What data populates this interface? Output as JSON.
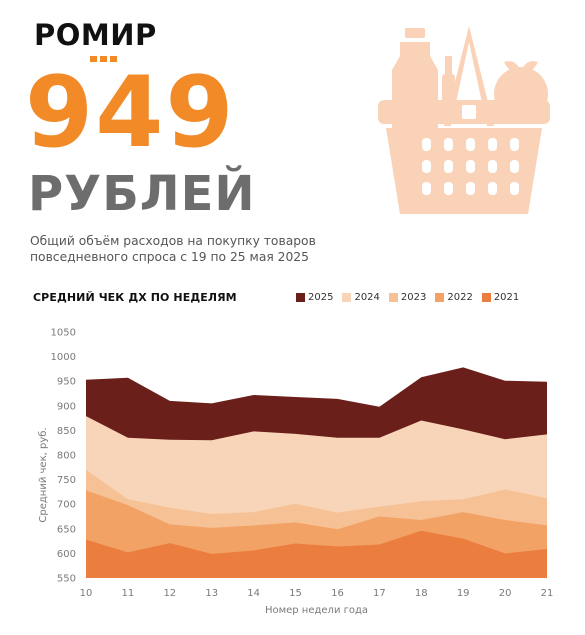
{
  "brand": {
    "logo_text": "РОМИР"
  },
  "headline": {
    "value": "949",
    "unit": "РУБЛЕЙ"
  },
  "subtitle_line1": "Общий объём расходов на покупку товаров",
  "subtitle_line2": "повседневного спроса с 19 по 25 мая 2025",
  "colors": {
    "accent": "#f28a28",
    "unit_gray": "#6d6d6d",
    "basket": "#f9d2b8"
  },
  "icons": {
    "basket": "grocery-basket-icon"
  },
  "chart_data": {
    "type": "area",
    "title": "СРЕДНИЙ ЧЕК ДХ ПО НЕДЕЛЯМ",
    "xlabel": "Номер недели года",
    "ylabel": "Средний чек, руб.",
    "x": [
      10,
      11,
      12,
      13,
      14,
      15,
      16,
      17,
      18,
      19,
      20,
      21
    ],
    "ylim": [
      550,
      1050
    ],
    "yticks": [
      550,
      600,
      650,
      700,
      750,
      800,
      850,
      900,
      950,
      1000,
      1050
    ],
    "grid": false,
    "legend_position": "top-right",
    "series": [
      {
        "name": "2025",
        "color": "#6b1f1a",
        "values": [
          953,
          957,
          910,
          905,
          922,
          918,
          914,
          898,
          958,
          978,
          951,
          949
        ]
      },
      {
        "name": "2024",
        "color": "#f8d5b8",
        "values": [
          879,
          835,
          831,
          830,
          848,
          843,
          835,
          835,
          870,
          852,
          832,
          842
        ]
      },
      {
        "name": "2023",
        "color": "#f6c295",
        "values": [
          770,
          710,
          693,
          680,
          684,
          701,
          683,
          695,
          706,
          710,
          730,
          712
        ]
      },
      {
        "name": "2022",
        "color": "#f3a266",
        "values": [
          728,
          698,
          659,
          652,
          657,
          663,
          649,
          675,
          668,
          684,
          668,
          657
        ]
      },
      {
        "name": "2021",
        "color": "#eb7d3f",
        "values": [
          628,
          602,
          621,
          599,
          606,
          620,
          614,
          618,
          646,
          630,
          600,
          609
        ]
      }
    ]
  }
}
